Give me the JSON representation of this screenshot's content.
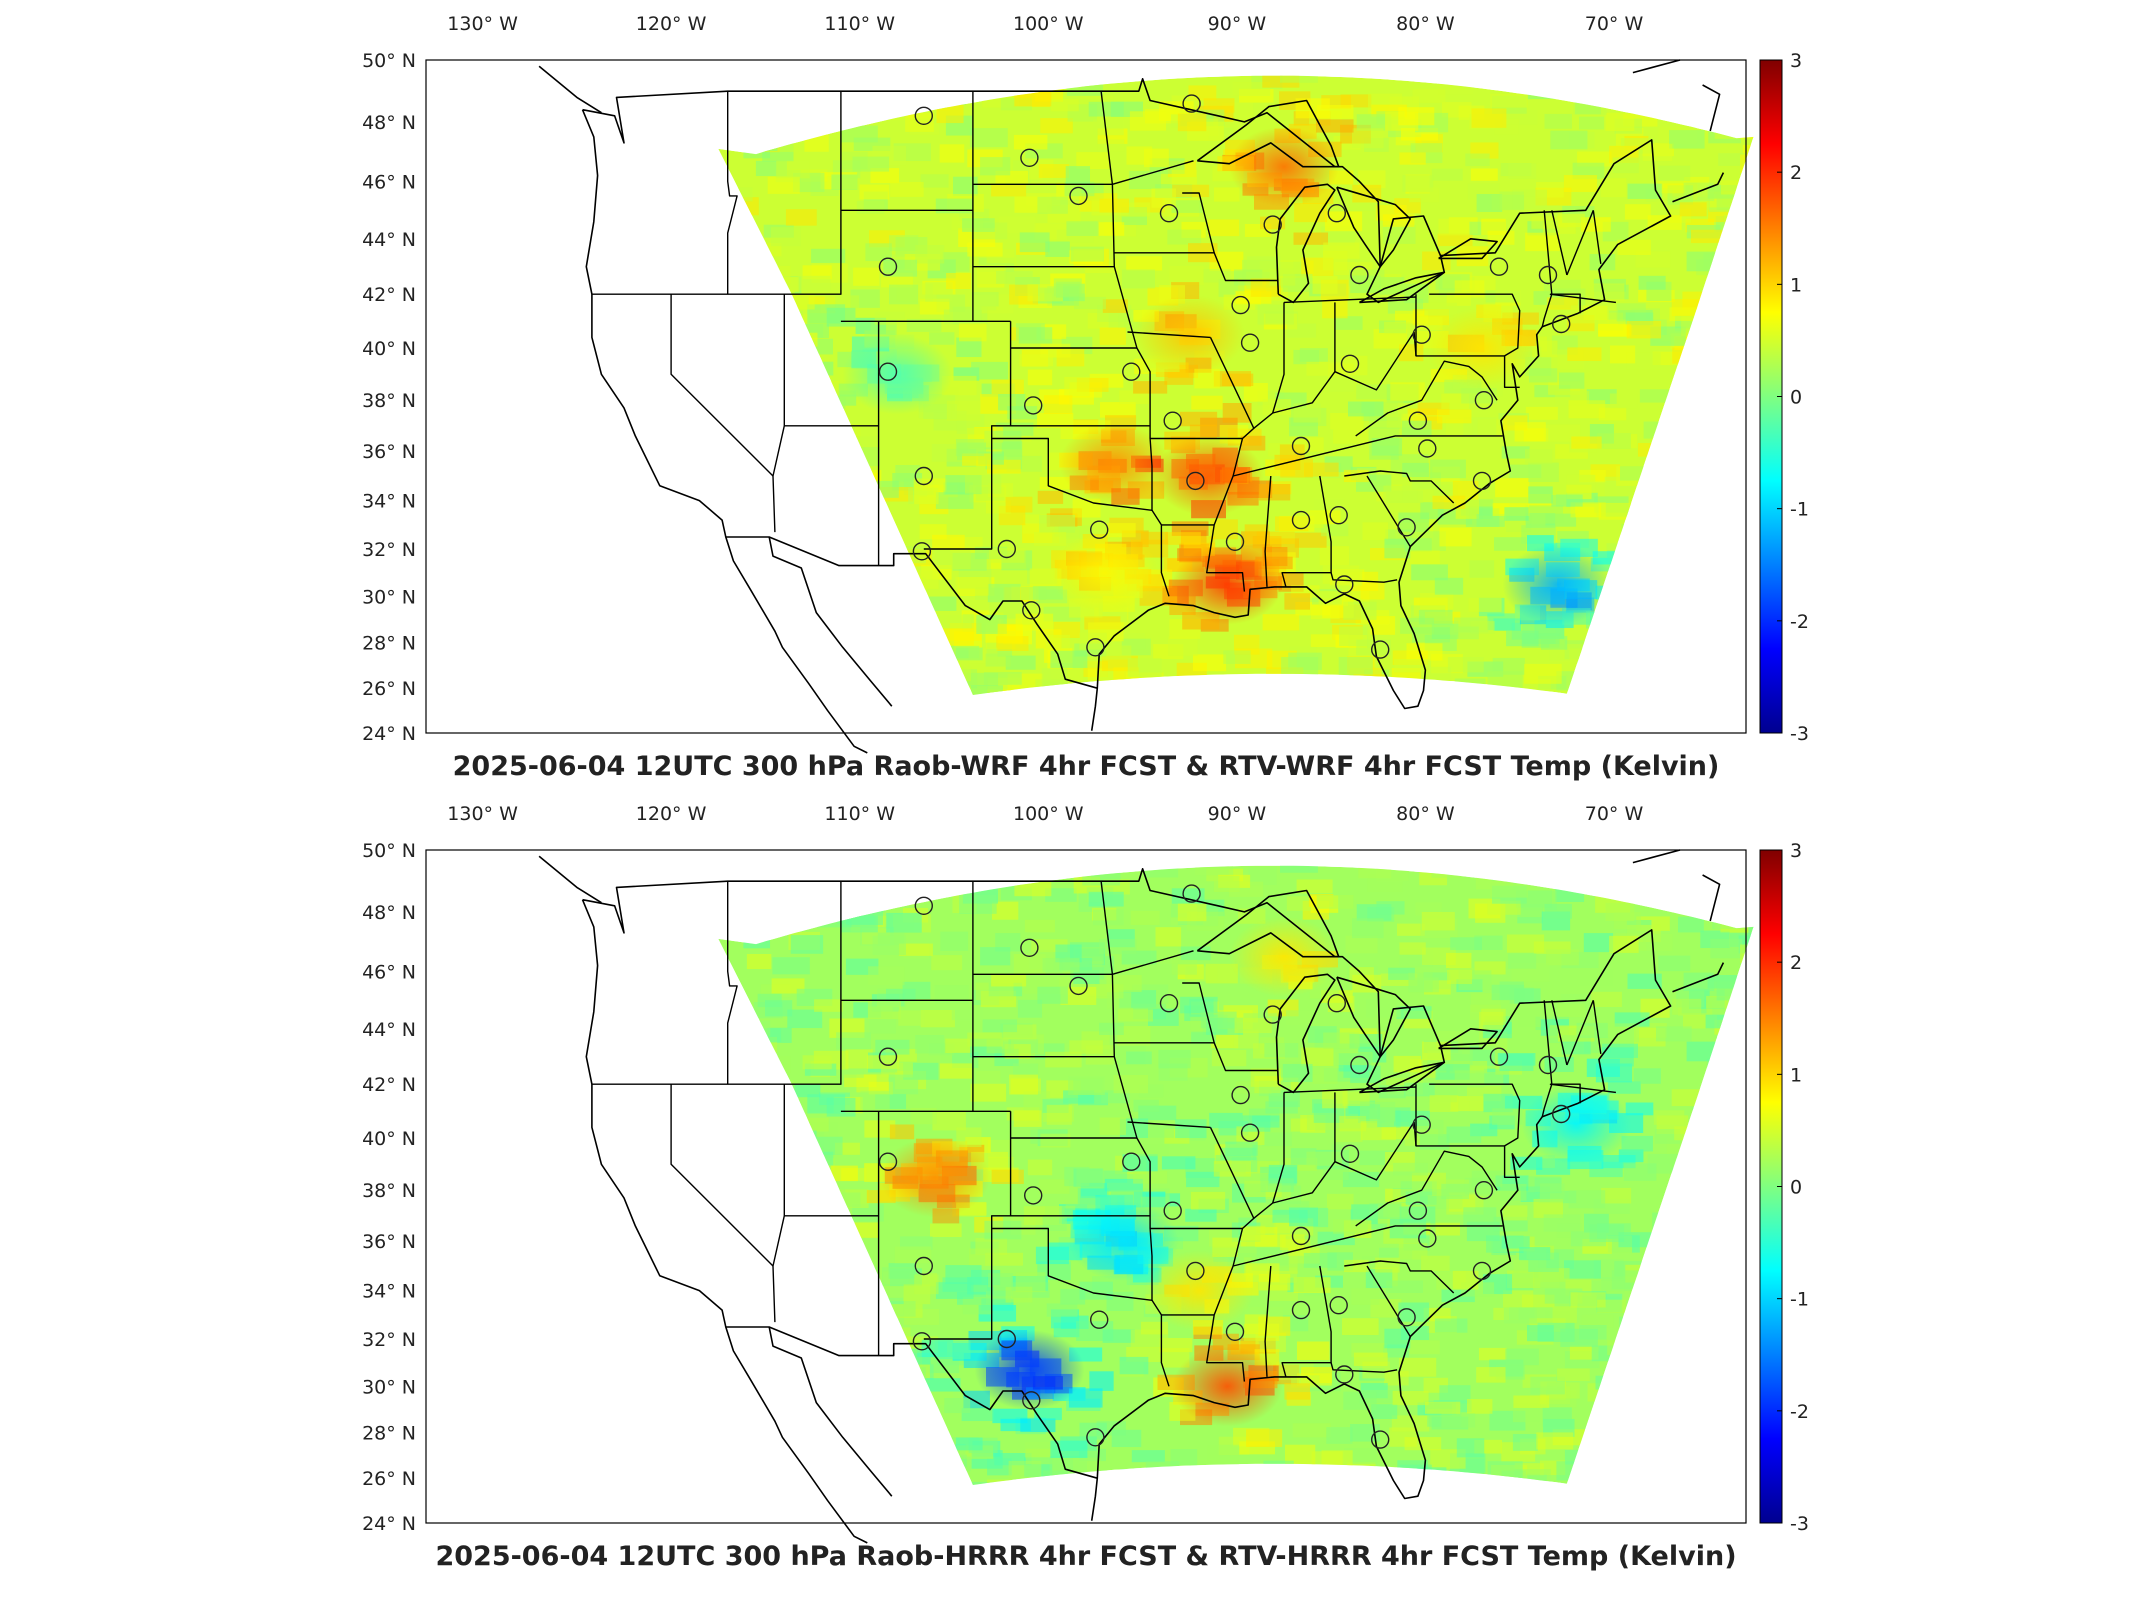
{
  "colors": {
    "colormap": [
      "#00008f",
      "#0000ff",
      "#0080ff",
      "#00ffff",
      "#80ff80",
      "#ffff00",
      "#ff8000",
      "#ff0000",
      "#800000"
    ],
    "coastline": "#000000",
    "frame": "#000000"
  },
  "map_axes": {
    "lon_labels": [
      "130° W",
      "120° W",
      "110° W",
      "100° W",
      "90° W",
      "80° W",
      "70° W"
    ],
    "lat_labels": [
      "50° N",
      "48° N",
      "46° N",
      "44° N",
      "42° N",
      "40° N",
      "38° N",
      "36° N",
      "34° N",
      "32° N",
      "30° N",
      "28° N",
      "26° N",
      "24° N"
    ]
  },
  "colorbar": {
    "range": [
      -3,
      3
    ],
    "tick_labels": [
      "3",
      "2",
      "1",
      "0",
      "-1",
      "-2",
      "-3"
    ]
  },
  "panels": [
    {
      "id": "top",
      "title": "2025-06-04 12UTC 300 hPa Raob-WRF 4hr FCST & RTV-WRF 4hr FCST Temp (Kelvin)",
      "hotspots": [
        {
          "lon": -87.5,
          "lat": 46.5,
          "value": 1.6
        },
        {
          "lon": -91.5,
          "lat": 35.0,
          "value": 1.7
        },
        {
          "lon": -90.5,
          "lat": 30.5,
          "value": 1.9
        },
        {
          "lon": -96.5,
          "lat": 35.5,
          "value": 1.4
        },
        {
          "lon": -92.5,
          "lat": 40.5,
          "value": 1.1
        },
        {
          "lon": -97.0,
          "lat": 31.0,
          "value": 0.8
        },
        {
          "lon": -73.0,
          "lat": 30.5,
          "value": -1.2
        },
        {
          "lon": -108.0,
          "lat": 39.0,
          "value": -0.3
        },
        {
          "lon": -77.0,
          "lat": 40.0,
          "value": 0.9
        }
      ]
    },
    {
      "id": "bottom",
      "title": "2025-06-04 12UTC 300 hPa Raob-HRRR 4hr FCST & RTV-HRRR 4hr FCST Temp (Kelvin)",
      "hotspots": [
        {
          "lon": -106.0,
          "lat": 38.5,
          "value": 1.4
        },
        {
          "lon": -90.5,
          "lat": 30.0,
          "value": 1.8
        },
        {
          "lon": -101.0,
          "lat": 30.7,
          "value": -1.9
        },
        {
          "lon": -96.0,
          "lat": 36.0,
          "value": -0.9
        },
        {
          "lon": -72.0,
          "lat": 40.5,
          "value": -0.8
        },
        {
          "lon": -92.0,
          "lat": 34.0,
          "value": 0.9
        },
        {
          "lon": -87.5,
          "lat": 46.5,
          "value": 0.9
        }
      ]
    }
  ],
  "raob_stations": [
    {
      "lon": -106.6,
      "lat": 48.2
    },
    {
      "lon": -92.4,
      "lat": 48.6
    },
    {
      "lon": -101.0,
      "lat": 46.8
    },
    {
      "lon": -98.4,
      "lat": 45.5
    },
    {
      "lon": -93.6,
      "lat": 44.9
    },
    {
      "lon": -88.1,
      "lat": 44.5
    },
    {
      "lon": -84.7,
      "lat": 44.9
    },
    {
      "lon": -108.5,
      "lat": 43.0
    },
    {
      "lon": -89.8,
      "lat": 41.6
    },
    {
      "lon": -83.5,
      "lat": 42.7
    },
    {
      "lon": -76.1,
      "lat": 43.0
    },
    {
      "lon": -73.5,
      "lat": 42.7
    },
    {
      "lon": -80.2,
      "lat": 40.5
    },
    {
      "lon": -72.8,
      "lat": 40.9
    },
    {
      "lon": -108.5,
      "lat": 39.1
    },
    {
      "lon": -95.6,
      "lat": 39.1
    },
    {
      "lon": -89.3,
      "lat": 40.2
    },
    {
      "lon": -84.0,
      "lat": 39.4
    },
    {
      "lon": -100.8,
      "lat": 37.8
    },
    {
      "lon": -93.4,
      "lat": 37.2
    },
    {
      "lon": -86.6,
      "lat": 36.2
    },
    {
      "lon": -79.9,
      "lat": 36.1
    },
    {
      "lon": -80.4,
      "lat": 37.2
    },
    {
      "lon": -76.9,
      "lat": 38.0
    },
    {
      "lon": -77.0,
      "lat": 34.8
    },
    {
      "lon": -106.6,
      "lat": 35.0
    },
    {
      "lon": -92.2,
      "lat": 34.8
    },
    {
      "lon": -97.3,
      "lat": 32.8
    },
    {
      "lon": -102.2,
      "lat": 32.0
    },
    {
      "lon": -106.7,
      "lat": 31.9
    },
    {
      "lon": -90.1,
      "lat": 32.3
    },
    {
      "lon": -86.6,
      "lat": 33.2
    },
    {
      "lon": -84.6,
      "lat": 33.4
    },
    {
      "lon": -81.0,
      "lat": 32.9
    },
    {
      "lon": -84.3,
      "lat": 30.5
    },
    {
      "lon": -100.9,
      "lat": 29.4
    },
    {
      "lon": -97.5,
      "lat": 27.8
    },
    {
      "lon": -82.4,
      "lat": 27.7
    }
  ]
}
